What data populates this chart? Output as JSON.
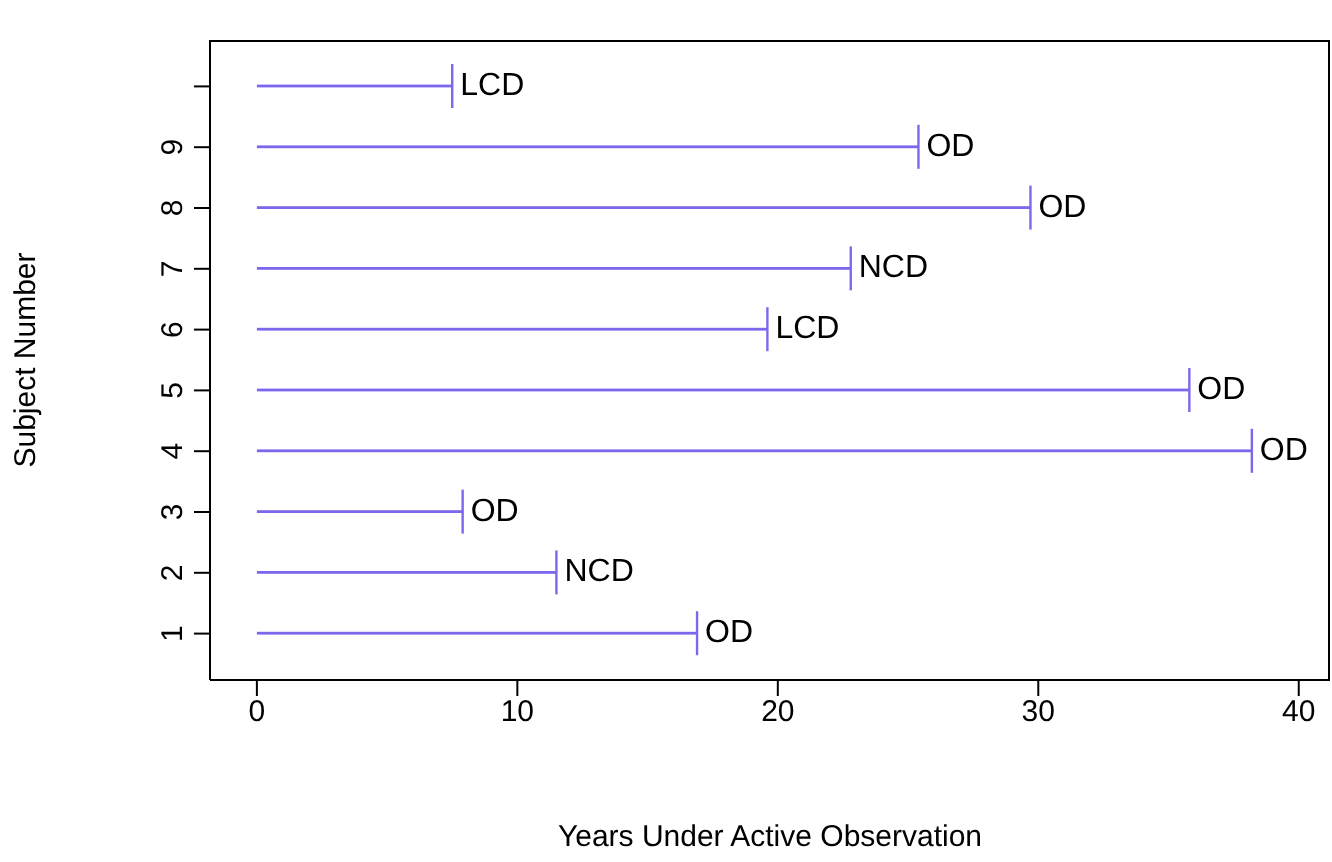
{
  "chart_data": {
    "type": "bar",
    "orientation": "horizontal",
    "xlabel": "Years Under Active Observation",
    "ylabel": "Subject Number",
    "categories": [
      null,
      "9",
      "8",
      "7",
      "6",
      "5",
      "4",
      "3",
      "2",
      "1"
    ],
    "values": [
      7.5,
      25.4,
      29.7,
      22.8,
      19.6,
      35.8,
      38.2,
      7.9,
      11.5,
      16.9
    ],
    "value_labels": [
      "LCD",
      "OD",
      "OD",
      "NCD",
      "LCD",
      "OD",
      "OD",
      "OD",
      "NCD",
      "OD"
    ],
    "color": "#7b68ee",
    "xlim": [
      -1.8,
      41.2
    ],
    "xticks": [
      0,
      10,
      20,
      30,
      40
    ]
  }
}
